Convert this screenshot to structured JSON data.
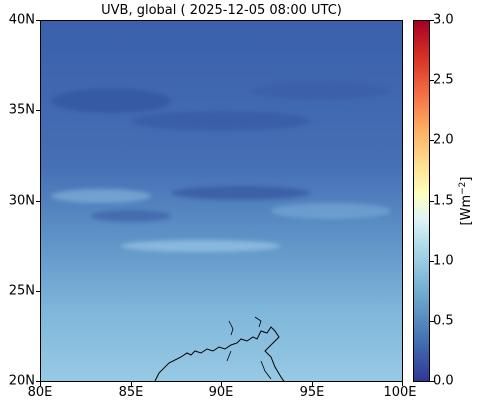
{
  "title": "UVB, global ( 2025-12-05 08:00 UTC)",
  "map": {
    "lon_range": [
      "80E",
      "100E"
    ],
    "lat_range": [
      "20N",
      "40N"
    ],
    "y_ticks": [
      "40N",
      "35N",
      "30N",
      "25N",
      "20N"
    ],
    "x_ticks": [
      "80E",
      "85E",
      "90E",
      "95E",
      "100E"
    ],
    "field_colors": {
      "north": "#3b62ad",
      "mid": "#4a7cbb",
      "south": "#8cc3df"
    }
  },
  "colorbar": {
    "ticks": [
      "3.0",
      "2.5",
      "2.0",
      "1.5",
      "1.0",
      "0.5",
      "0.0"
    ],
    "label_base": "[Wm",
    "label_exp": "−2",
    "label_close": "]",
    "colormap": "RdYlBu_r"
  }
}
